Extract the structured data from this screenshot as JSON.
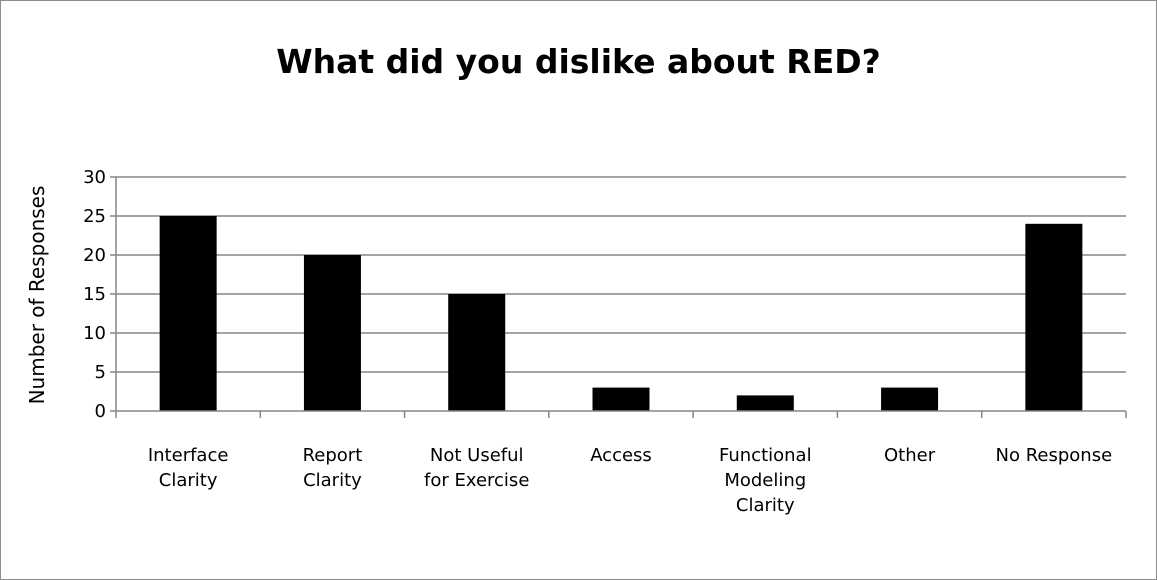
{
  "chart_data": {
    "type": "bar",
    "title": "What did you dislike about RED?",
    "xlabel": "",
    "ylabel": "Number of Responses",
    "categories": [
      [
        "Interface",
        "Clarity"
      ],
      [
        "Report",
        "Clarity"
      ],
      [
        "Not Useful",
        "for Exercise"
      ],
      [
        "Access"
      ],
      [
        "Functional",
        "Modeling",
        "Clarity"
      ],
      [
        "Other"
      ],
      [
        "No Response"
      ]
    ],
    "values": [
      25,
      20,
      15,
      3,
      2,
      3,
      24
    ],
    "ylim": [
      0,
      30
    ],
    "yticks": [
      0,
      5,
      10,
      15,
      20,
      25,
      30
    ],
    "grid": true,
    "legend": "none",
    "bar_color": "#000000",
    "grid_color": "#868686"
  }
}
